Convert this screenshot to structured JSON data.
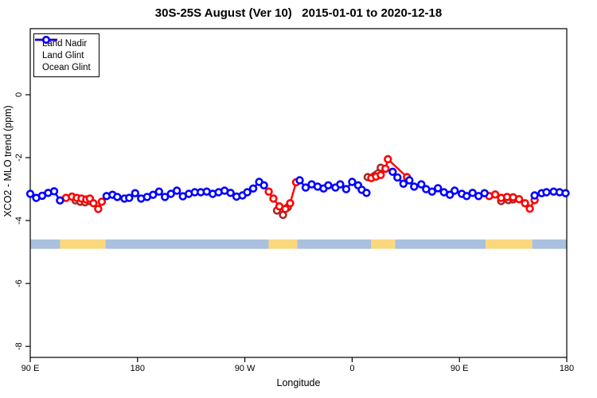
{
  "figure": {
    "title": "30S-25S August (Ver 10)   2015-01-01 to 2020-12-18"
  },
  "legend": {
    "items": [
      {
        "label": "Land Nadir",
        "color": "#A52A2A"
      },
      {
        "label": "Land Glint",
        "color": "#FF0000"
      },
      {
        "label": "Ocean Glint",
        "color": "#0000FF"
      }
    ]
  },
  "chart_data": {
    "type": "line",
    "title": "30S-25S August (Ver 10)   2015-01-01 to 2020-12-18",
    "xlabel": "Longitude",
    "ylabel": "XCO2 - MLO trend (ppm)",
    "x_unit": "degrees east of 90E, wrapping 90E->180->90W->0->90E->180",
    "xlim": [
      0,
      450
    ],
    "ylim": [
      -8.35,
      2.1
    ],
    "grid": false,
    "legend_position": "top-left",
    "x_ticks": [
      {
        "pos": 0,
        "label": "90 E"
      },
      {
        "pos": 90,
        "label": "180"
      },
      {
        "pos": 180,
        "label": "90 W"
      },
      {
        "pos": 270,
        "label": "0"
      },
      {
        "pos": 360,
        "label": "90 E"
      },
      {
        "pos": 450,
        "label": "180"
      }
    ],
    "y_ticks": [
      {
        "pos": 0,
        "label": "0"
      },
      {
        "pos": -2,
        "label": "-2"
      },
      {
        "pos": -4,
        "label": "-4"
      },
      {
        "pos": -6,
        "label": "-6"
      },
      {
        "pos": -8,
        "label": "-8"
      }
    ],
    "series": [
      {
        "name": "Land Nadir",
        "color": "#A52A2A",
        "segments": [
          [
            [
              38,
              -3.36
            ],
            [
              42,
              -3.4
            ],
            [
              46,
              -3.42
            ],
            [
              50,
              -3.38
            ]
          ],
          [
            [
              207,
              -3.68
            ],
            [
              212,
              -3.82
            ],
            [
              216,
              -3.58
            ]
          ],
          [
            [
              283,
              -2.62
            ],
            [
              294,
              -2.32
            ]
          ],
          [
            [
              395,
              -3.38
            ],
            [
              401,
              -3.35
            ],
            [
              405,
              -3.33
            ]
          ]
        ]
      },
      {
        "name": "Land Glint",
        "color": "#FF0000",
        "segments": [
          [
            [
              30,
              -3.28
            ],
            [
              35,
              -3.24
            ],
            [
              39,
              -3.28
            ],
            [
              43,
              -3.3
            ],
            [
              47,
              -3.33
            ],
            [
              50,
              -3.3
            ],
            [
              53,
              -3.45
            ],
            [
              57,
              -3.63
            ],
            [
              60,
              -3.4
            ]
          ],
          [
            [
              200,
              -3.08
            ],
            [
              204,
              -3.3
            ],
            [
              209,
              -3.55
            ],
            [
              214,
              -3.63
            ],
            [
              218,
              -3.45
            ],
            [
              223,
              -2.78
            ]
          ],
          [
            [
              286,
              -2.65
            ],
            [
              290,
              -2.6
            ],
            [
              294,
              -2.55
            ],
            [
              298,
              -2.35
            ],
            [
              300,
              -2.05
            ],
            [
              316,
              -2.62
            ]
          ],
          [
            [
              385,
              -3.22
            ],
            [
              390,
              -3.17
            ],
            [
              395,
              -3.28
            ],
            [
              400,
              -3.25
            ],
            [
              405,
              -3.26
            ],
            [
              410,
              -3.32
            ],
            [
              415,
              -3.45
            ],
            [
              419,
              -3.62
            ],
            [
              423,
              -3.35
            ]
          ]
        ]
      },
      {
        "name": "Ocean Glint",
        "color": "#0000FF",
        "segments": [
          [
            [
              0,
              -3.15
            ],
            [
              5,
              -3.28
            ],
            [
              10,
              -3.21
            ],
            [
              15,
              -3.12
            ],
            [
              20,
              -3.07
            ],
            [
              25,
              -3.36
            ]
          ],
          [
            [
              64,
              -3.22
            ],
            [
              69,
              -3.18
            ],
            [
              73,
              -3.25
            ],
            [
              79,
              -3.3
            ],
            [
              83,
              -3.28
            ],
            [
              88,
              -3.13
            ],
            [
              93,
              -3.3
            ],
            [
              98,
              -3.25
            ],
            [
              103,
              -3.18
            ],
            [
              108,
              -3.08
            ],
            [
              113,
              -3.25
            ],
            [
              118,
              -3.15
            ],
            [
              123,
              -3.05
            ],
            [
              128,
              -3.23
            ],
            [
              133,
              -3.15
            ],
            [
              138,
              -3.1
            ],
            [
              143,
              -3.1
            ],
            [
              148,
              -3.08
            ],
            [
              153,
              -3.15
            ],
            [
              158,
              -3.1
            ],
            [
              163,
              -3.05
            ],
            [
              168,
              -3.12
            ],
            [
              173,
              -3.24
            ],
            [
              178,
              -3.2
            ],
            [
              182,
              -3.1
            ],
            [
              187,
              -2.98
            ],
            [
              192,
              -2.77
            ],
            [
              196,
              -2.88
            ]
          ],
          [
            [
              226,
              -2.72
            ],
            [
              231,
              -2.95
            ],
            [
              236,
              -2.85
            ],
            [
              241,
              -2.92
            ],
            [
              246,
              -2.98
            ],
            [
              250,
              -2.88
            ],
            [
              256,
              -2.95
            ],
            [
              260,
              -2.85
            ],
            [
              265,
              -3.0
            ],
            [
              270,
              -2.77
            ],
            [
              275,
              -2.88
            ],
            [
              278,
              -3.02
            ],
            [
              282,
              -3.12
            ]
          ],
          [
            [
              304,
              -2.45
            ],
            [
              308,
              -2.63
            ],
            [
              313,
              -2.83
            ],
            [
              318,
              -2.72
            ],
            [
              322,
              -2.92
            ],
            [
              328,
              -2.85
            ],
            [
              332,
              -3.0
            ],
            [
              337,
              -3.08
            ],
            [
              342,
              -2.97
            ],
            [
              347,
              -3.1
            ],
            [
              352,
              -3.18
            ],
            [
              356,
              -3.05
            ],
            [
              362,
              -3.15
            ],
            [
              366,
              -3.22
            ],
            [
              371,
              -3.12
            ],
            [
              376,
              -3.22
            ],
            [
              381,
              -3.13
            ]
          ],
          [
            [
              423,
              -3.2
            ],
            [
              429,
              -3.13
            ],
            [
              433,
              -3.1
            ],
            [
              439,
              -3.08
            ],
            [
              444,
              -3.1
            ],
            [
              449,
              -3.13
            ]
          ]
        ]
      }
    ],
    "surface_band": {
      "description": "land/ocean strip",
      "y_range_ppm": [
        -4.6,
        -4.9
      ],
      "ocean_color": "#A9C1DE",
      "land_color": "#FBD87E",
      "segments": [
        {
          "from": 0,
          "to": 25,
          "type": "ocean"
        },
        {
          "from": 25,
          "to": 63,
          "type": "land"
        },
        {
          "from": 63,
          "to": 200,
          "type": "ocean"
        },
        {
          "from": 200,
          "to": 224,
          "type": "land"
        },
        {
          "from": 224,
          "to": 286,
          "type": "ocean"
        },
        {
          "from": 286,
          "to": 306,
          "type": "land"
        },
        {
          "from": 306,
          "to": 382,
          "type": "ocean"
        },
        {
          "from": 382,
          "to": 421,
          "type": "land"
        },
        {
          "from": 421,
          "to": 450,
          "type": "ocean"
        }
      ]
    }
  }
}
